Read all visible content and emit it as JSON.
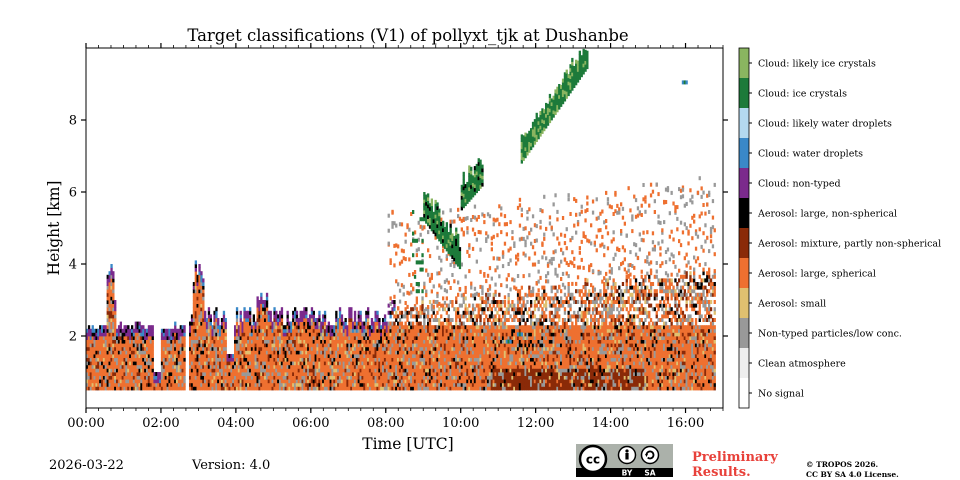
{
  "chart_data": {
    "type": "heatmap",
    "title": "Target classifications (V1) of pollyxt_tjk at Dushanbe",
    "xlabel": "Time [UTC]",
    "ylabel": "Height [km]",
    "xlim": [
      0,
      17
    ],
    "ylim": [
      0,
      10
    ],
    "x_ticks": [
      {
        "value": 0,
        "label": "00:00"
      },
      {
        "value": 2,
        "label": "02:00"
      },
      {
        "value": 4,
        "label": "04:00"
      },
      {
        "value": 6,
        "label": "06:00"
      },
      {
        "value": 8,
        "label": "08:00"
      },
      {
        "value": 10,
        "label": "10:00"
      },
      {
        "value": 12,
        "label": "12:00"
      },
      {
        "value": 14,
        "label": "14:00"
      },
      {
        "value": 16,
        "label": "16:00"
      }
    ],
    "y_ticks": [
      {
        "value": 2,
        "label": "2"
      },
      {
        "value": 4,
        "label": "4"
      },
      {
        "value": 6,
        "label": "6"
      },
      {
        "value": 8,
        "label": "8"
      }
    ],
    "legend": [
      {
        "label": "Cloud: likely ice crystals",
        "color": "#8ab560"
      },
      {
        "label": "Cloud: ice crystals",
        "color": "#1d7a3a"
      },
      {
        "label": "Cloud: likely water droplets",
        "color": "#b4d9f0"
      },
      {
        "label": "Cloud: water droplets",
        "color": "#3a88c8"
      },
      {
        "label": "Cloud: non-typed",
        "color": "#7b2a8c"
      },
      {
        "label": "Aerosol: large, non-spherical",
        "color": "#000000"
      },
      {
        "label": "Aerosol: mixture, partly non-spherical",
        "color": "#8a2a08"
      },
      {
        "label": "Aerosol: large, spherical",
        "color": "#ee7030"
      },
      {
        "label": "Aerosol: small",
        "color": "#e0c070"
      },
      {
        "label": "Non-typed particles/low conc.",
        "color": "#999999"
      },
      {
        "label": "Clean atmosphere",
        "color": "#eeeeee"
      },
      {
        "label": "No signal",
        "color": "#ffffff"
      }
    ],
    "regions": [
      {
        "class": "Aerosol: large, spherical",
        "x": [
          0,
          2.6
        ],
        "height_range": [
          0.5,
          2.2
        ]
      },
      {
        "class": "Aerosol: large, spherical",
        "x": [
          2.7,
          8
        ],
        "height_range": [
          0.5,
          2.6
        ]
      },
      {
        "class": "Aerosol: large, spherical",
        "x": [
          8,
          16.8
        ],
        "height_range": [
          0.5,
          3.5
        ]
      },
      {
        "class": "Cloud: non-typed",
        "x": [
          0.6,
          1.8
        ],
        "height_range": [
          2.1,
          2.4
        ]
      },
      {
        "class": "Cloud: ice crystals",
        "x": [
          9.0,
          10.6
        ],
        "height_range": [
          3.6,
          6.6
        ]
      },
      {
        "class": "Cloud: ice crystals",
        "x": [
          11.6,
          13.4
        ],
        "height_range": [
          6.8,
          10.0
        ]
      },
      {
        "class": "Aerosol: mixture, partly non-spherical",
        "x": [
          10.8,
          15
        ],
        "height_range": [
          0.5,
          1.0
        ]
      }
    ]
  },
  "footer": {
    "date": "2026-03-22",
    "version": "Version: 4.0",
    "preliminary_line1": "Preliminary",
    "preliminary_line2": "Results.",
    "copyright_line1": "© TROPOS 2026.",
    "copyright_line2": "CC BY SA 4.0 License."
  },
  "license_badge": {
    "cc": "cc",
    "by": "BY",
    "sa": "SA"
  }
}
